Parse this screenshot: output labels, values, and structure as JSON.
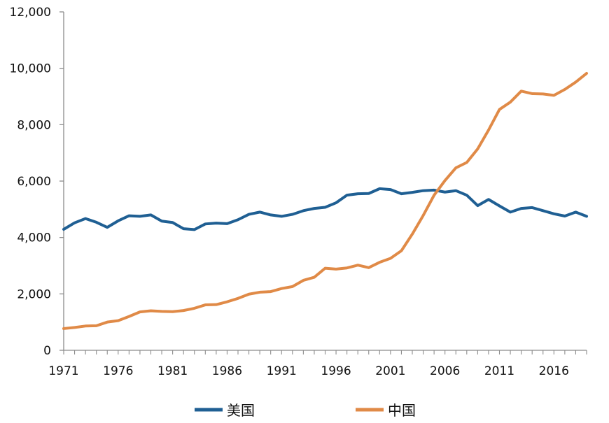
{
  "chart_data": {
    "type": "line",
    "title": "",
    "xlabel": "",
    "ylabel": "",
    "xlim": [
      1971,
      2019
    ],
    "ylim": [
      0,
      12000
    ],
    "grid": false,
    "legend_position": "bottom",
    "x_ticks": [
      1971,
      1976,
      1981,
      1986,
      1991,
      1996,
      2001,
      2006,
      2011,
      2016
    ],
    "x_tick_labels": [
      "1971",
      "1976",
      "1981",
      "1986",
      "1991",
      "1996",
      "2001",
      "2006",
      "2011",
      "2016"
    ],
    "y_ticks": [
      0,
      2000,
      4000,
      6000,
      8000,
      10000,
      12000
    ],
    "y_tick_labels": [
      "0",
      "2,000",
      "4,000",
      "6,000",
      "8,000",
      "10,000",
      "12,000"
    ],
    "x": [
      1971,
      1972,
      1973,
      1974,
      1975,
      1976,
      1977,
      1978,
      1979,
      1980,
      1981,
      1982,
      1983,
      1984,
      1985,
      1986,
      1987,
      1988,
      1989,
      1990,
      1991,
      1992,
      1993,
      1994,
      1995,
      1996,
      1997,
      1998,
      1999,
      2000,
      2001,
      2002,
      2003,
      2004,
      2005,
      2006,
      2007,
      2008,
      2009,
      2010,
      2011,
      2012,
      2013,
      2014,
      2015,
      2016,
      2017,
      2018,
      2019
    ],
    "series": [
      {
        "name": "美国",
        "color": "#1f5f93",
        "values": [
          4290,
          4520,
          4670,
          4540,
          4360,
          4590,
          4770,
          4750,
          4800,
          4580,
          4530,
          4310,
          4280,
          4480,
          4510,
          4490,
          4630,
          4820,
          4900,
          4800,
          4750,
          4820,
          4950,
          5030,
          5070,
          5230,
          5500,
          5550,
          5560,
          5730,
          5700,
          5550,
          5600,
          5660,
          5680,
          5610,
          5660,
          5500,
          5130,
          5350,
          5120,
          4900,
          5030,
          5060,
          4950,
          4840,
          4760,
          4900,
          4750
        ]
      },
      {
        "name": "中国",
        "color": "#e08a47",
        "values": [
          770,
          810,
          860,
          870,
          1000,
          1050,
          1200,
          1360,
          1400,
          1380,
          1370,
          1410,
          1490,
          1610,
          1620,
          1720,
          1840,
          1990,
          2060,
          2080,
          2190,
          2260,
          2480,
          2590,
          2910,
          2880,
          2920,
          3020,
          2930,
          3120,
          3260,
          3530,
          4120,
          4780,
          5500,
          6020,
          6470,
          6660,
          7140,
          7810,
          8540,
          8800,
          9190,
          9100,
          9090,
          9040,
          9250,
          9510,
          9820
        ]
      }
    ]
  }
}
